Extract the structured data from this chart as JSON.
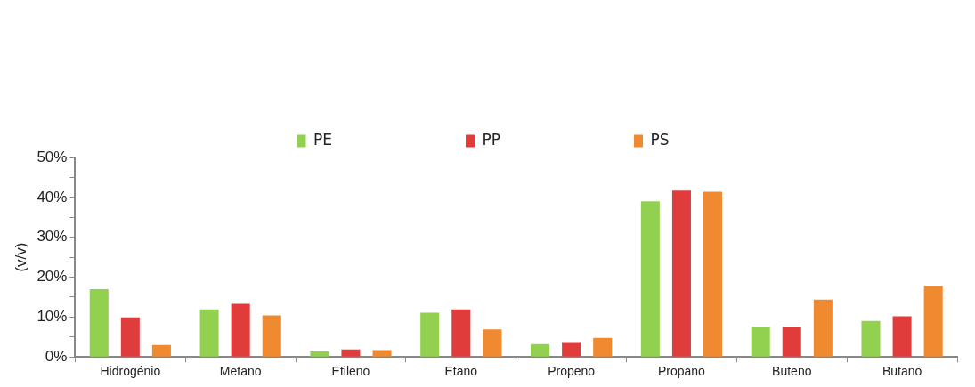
{
  "chart_data": {
    "type": "bar",
    "ylabel": "(v/v)",
    "categories": [
      "Hidrogénio",
      "Metano",
      "Etileno",
      "Etano",
      "Propeno",
      "Propano",
      "Buteno",
      "Butano"
    ],
    "series": [
      {
        "name": "PE",
        "color": "#92d050",
        "values": [
          17.0,
          11.9,
          1.4,
          11.1,
          3.2,
          39.0,
          7.5,
          9.0
        ]
      },
      {
        "name": "PP",
        "color": "#e03c3c",
        "values": [
          9.9,
          13.3,
          1.9,
          11.9,
          3.7,
          41.7,
          7.5,
          10.2
        ]
      },
      {
        "name": "PS",
        "color": "#f08a30",
        "values": [
          3.0,
          10.4,
          1.7,
          6.9,
          4.8,
          41.4,
          14.4,
          17.8
        ]
      }
    ],
    "ylim": [
      0,
      50
    ],
    "yticks": [
      {
        "value": 0,
        "label": "0%"
      },
      {
        "value": 5,
        "label": null
      },
      {
        "value": 10,
        "label": "10%"
      },
      {
        "value": 15,
        "label": null
      },
      {
        "value": 20,
        "label": "20%"
      },
      {
        "value": 25,
        "label": null
      },
      {
        "value": 30,
        "label": "30%"
      },
      {
        "value": 35,
        "label": null
      },
      {
        "value": 40,
        "label": "40%"
      },
      {
        "value": 45,
        "label": null
      },
      {
        "value": 50,
        "label": "50%"
      }
    ],
    "grid": false,
    "legend": "top"
  }
}
